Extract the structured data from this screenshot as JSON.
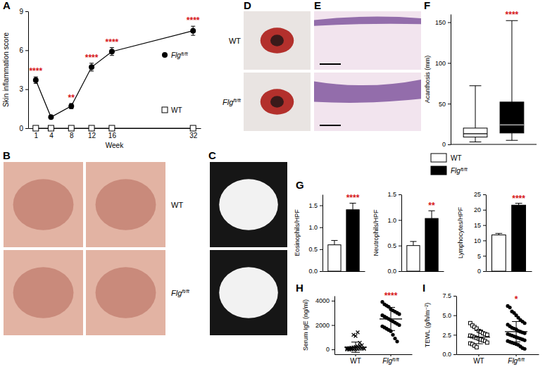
{
  "chart_data": [
    {
      "panel": "A",
      "type": "line",
      "y_label": "Skin inflammation score",
      "x_label": "Week",
      "x": [
        1,
        4,
        8,
        12,
        16,
        32
      ],
      "xlim": [
        -0.5,
        33.5
      ],
      "xticks": [
        1,
        4,
        8,
        12,
        16,
        32
      ],
      "ylim": [
        0,
        9
      ],
      "yticks": [
        0,
        3,
        6,
        9
      ],
      "legend": "right",
      "series": [
        {
          "name": "Flg",
          "name_superscript": "ft/ft",
          "color": "#000000",
          "marker": "circle",
          "values": [
            3.7,
            0.85,
            1.7,
            4.7,
            5.9,
            7.5
          ],
          "errors": [
            0.25,
            0.1,
            0.2,
            0.3,
            0.3,
            0.35
          ]
        },
        {
          "name": "WT",
          "color": "#000000",
          "marker": "open-square",
          "values": [
            0,
            0,
            0,
            0,
            0,
            0
          ]
        }
      ],
      "annotations": [
        {
          "x": 1,
          "text": "****",
          "color": "#d7191c"
        },
        {
          "x": 8,
          "text": "**",
          "color": "#d7191c"
        },
        {
          "x": 12,
          "text": "****",
          "color": "#d7191c"
        },
        {
          "x": 16,
          "text": "****",
          "color": "#d7191c"
        },
        {
          "x": 32,
          "text": "****",
          "color": "#d7191c"
        }
      ]
    },
    {
      "panel": "F",
      "type": "box",
      "y_label": "Acanthosis (mm)",
      "ylim": [
        0,
        160
      ],
      "yticks": [
        0,
        50,
        100,
        150
      ],
      "legend": "bottom",
      "series": [
        {
          "name": "WT",
          "color": "#ffffff",
          "whisker_low": 3,
          "q1": 9,
          "median": 13,
          "q3": 20,
          "whisker_high": 72
        },
        {
          "name": "Flg",
          "name_superscript": "ft/ft",
          "color": "#000000",
          "whisker_low": 5,
          "q1": 14,
          "median": 24,
          "q3": 52,
          "whisker_high": 152
        }
      ],
      "annotations": [
        {
          "series": 1,
          "text": "****",
          "color": "#d7191c"
        }
      ]
    },
    {
      "panel": "G",
      "type": "bar",
      "y_label": "Eosinophils/HPF",
      "categories": [
        null,
        null
      ],
      "values": [
        0.6,
        1.4
      ],
      "errors": [
        0.1,
        0.15
      ],
      "colors": [
        "#ffffff",
        "#000000"
      ],
      "ylim": [
        0,
        1.75
      ],
      "yticks": [
        {
          "value": 0,
          "label": "0.0"
        },
        {
          "value": 0.5,
          "label": "0.5"
        },
        {
          "value": 1,
          "label": "1.0"
        },
        {
          "value": 1.5,
          "label": "1.5"
        }
      ],
      "annotations": [
        {
          "category": 1,
          "text": "****",
          "color": "#d7191c"
        }
      ]
    },
    {
      "type": "bar",
      "y_label": "Neutrophils/HPF",
      "categories": [
        null,
        null
      ],
      "values": [
        0.5,
        1.03
      ],
      "errors": [
        0.08,
        0.15
      ],
      "colors": [
        "#ffffff",
        "#000000"
      ],
      "ylim": [
        0,
        1.5
      ],
      "yticks": [
        {
          "value": 0,
          "label": "0.0"
        },
        {
          "value": 0.5,
          "label": "0.5"
        },
        {
          "value": 1,
          "label": "1.0"
        },
        {
          "value": 1.5,
          "label": "1.5"
        }
      ],
      "annotations": [
        {
          "category": 1,
          "text": "**",
          "color": "#d7191c"
        }
      ]
    },
    {
      "type": "bar",
      "y_label": "Lymphocytes/HPF",
      "categories": [
        null,
        null
      ],
      "values": [
        11.8,
        21.5
      ],
      "errors": [
        0.5,
        0.6
      ],
      "colors": [
        "#ffffff",
        "#000000"
      ],
      "ylim": [
        0,
        25
      ],
      "yticks": [
        0,
        5,
        10,
        15,
        20,
        25
      ],
      "annotations": [
        {
          "category": 1,
          "text": "****",
          "color": "#d7191c"
        }
      ]
    },
    {
      "panel": "H",
      "type": "strip",
      "y_label": "Serum IgE (ng/ml)",
      "categories": [
        "WT",
        "Flg"
      ],
      "category_superscripts": [
        null,
        "ft/ft"
      ],
      "ylim": [
        -400,
        4400
      ],
      "yticks": [
        0,
        2000,
        4000
      ],
      "groups": [
        {
          "marker": "x",
          "color": "#000000",
          "values": [
            0,
            0,
            0,
            10,
            20,
            30,
            50,
            60,
            80,
            100,
            120,
            150,
            180,
            200,
            250,
            300,
            350,
            50,
            20,
            0,
            40,
            1200,
            1100,
            1400,
            550
          ],
          "mean": 180,
          "sd": 420
        },
        {
          "marker": "circle",
          "color": "#000000",
          "values": [
            3900,
            3700,
            3600,
            3500,
            3300,
            3200,
            3100,
            3000,
            2900,
            2800,
            2700,
            2600,
            2500,
            2400,
            2300,
            2200,
            2100,
            2000,
            1900,
            1800,
            1700,
            1600,
            1500,
            1200,
            900,
            650
          ],
          "mean": 2500,
          "sd": 950
        }
      ],
      "annotations": [
        {
          "category": 1,
          "text": "****",
          "color": "#d7191c"
        }
      ]
    },
    {
      "panel": "I",
      "type": "strip",
      "y_label": "TEWL (g/h/m⁻²)",
      "categories": [
        "WT",
        "Flg"
      ],
      "category_superscripts": [
        null,
        "ft/ft"
      ],
      "ylim": [
        0,
        7.5
      ],
      "yticks": [
        {
          "value": 0,
          "label": "0.0"
        },
        {
          "value": 2.5,
          "label": "2.5"
        },
        {
          "value": 5,
          "label": "5.0"
        },
        {
          "value": 7.5,
          "label": "7.5"
        }
      ],
      "groups": [
        {
          "marker": "open-square",
          "color": "#000000",
          "values": [
            4.0,
            3.7,
            3.5,
            3.3,
            3.0,
            2.9,
            2.7,
            2.6,
            2.5,
            2.4,
            2.3,
            2.2,
            2.1,
            2.0,
            1.9,
            1.8,
            1.7,
            1.5,
            1.4,
            1.3,
            1.1,
            0.9
          ],
          "mean": 2.2,
          "sd": 0.85
        },
        {
          "marker": "circle",
          "color": "#000000",
          "values": [
            6.2,
            6.0,
            5.5,
            5.3,
            5.0,
            4.7,
            4.4,
            4.2,
            4.0,
            3.8,
            3.6,
            3.4,
            3.3,
            3.2,
            3.0,
            2.9,
            2.8,
            2.7,
            2.6,
            2.5,
            2.4,
            2.3,
            2.2,
            2.1,
            2.0,
            1.9,
            1.8,
            1.7,
            1.6,
            1.5,
            1.4,
            1.3,
            1.2,
            1.0,
            0.8,
            0.7
          ],
          "mean": 2.9,
          "sd": 1.3
        }
      ],
      "annotations": [
        {
          "category": 1,
          "text": "*",
          "color": "#d7191c"
        }
      ]
    }
  ],
  "photos": [
    {
      "panel": "B",
      "row_labels": [
        {
          "text": "WT"
        },
        {
          "text": "Flg",
          "superscript": "ft/ft"
        }
      ]
    },
    {
      "panel": "C"
    },
    {
      "panel": "D",
      "row_labels": [
        {
          "text": "WT"
        },
        {
          "text": "Flg",
          "superscript": "ft/ft"
        }
      ]
    },
    {
      "panel": "E"
    }
  ]
}
